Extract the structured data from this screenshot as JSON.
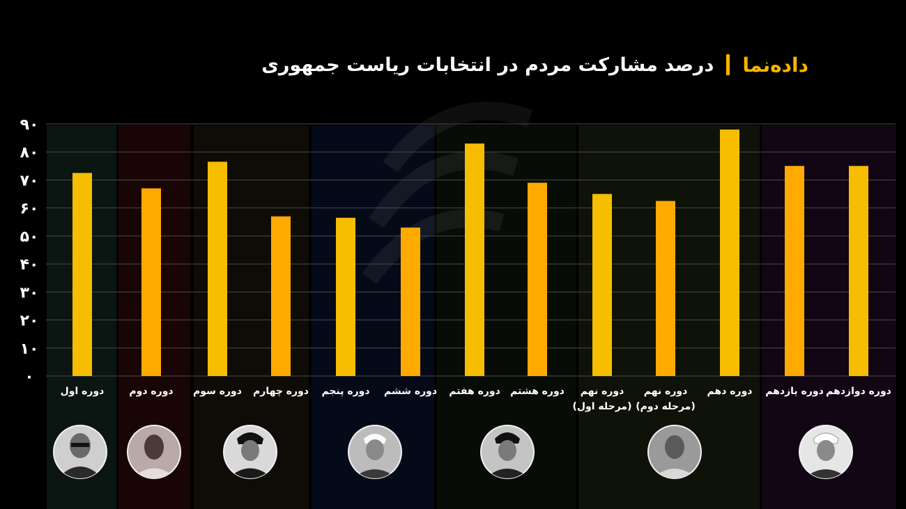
{
  "header": {
    "brand": "داده‌نما",
    "title": "درصد مشارکت مردم در انتخابات ریاست جمهوری"
  },
  "colors": {
    "bar_primary": "#f7bd00",
    "bar_alt": "#ffaa00",
    "background": "#000000",
    "grid": "#4a4a4a",
    "brand": "#f7b500"
  },
  "icons": [
    "portrait-icon-1",
    "portrait-icon-2",
    "portrait-icon-3",
    "portrait-icon-4",
    "portrait-icon-5",
    "portrait-icon-6",
    "portrait-icon-7"
  ],
  "chart_data": {
    "type": "bar",
    "title": "درصد مشارکت مردم در انتخابات ریاست جمهوری",
    "xlabel": "",
    "ylabel": "",
    "ylim": [
      0,
      90
    ],
    "yticks": [
      "۰",
      "۱۰",
      "۲۰",
      "۳۰",
      "۴۰",
      "۵۰",
      "۶۰",
      "۷۰",
      "۸۰",
      "۹۰"
    ],
    "grid": true,
    "legend": "none",
    "categories": [
      "دوره اول",
      "دوره دوم",
      "دوره سوم",
      "دوره چهارم",
      "دوره پنجم",
      "دوره ششم",
      "دوره هفتم",
      "دوره هشتم",
      "دوره نهم (مرحله اول)",
      "دوره نهم (مرحله دوم)",
      "دوره دهم",
      "دوره یازدهم",
      "دوره دوازدهم"
    ],
    "values": [
      72.5,
      67,
      76.5,
      57,
      56.5,
      53,
      83,
      69,
      65,
      62.5,
      88,
      75,
      75
    ]
  }
}
